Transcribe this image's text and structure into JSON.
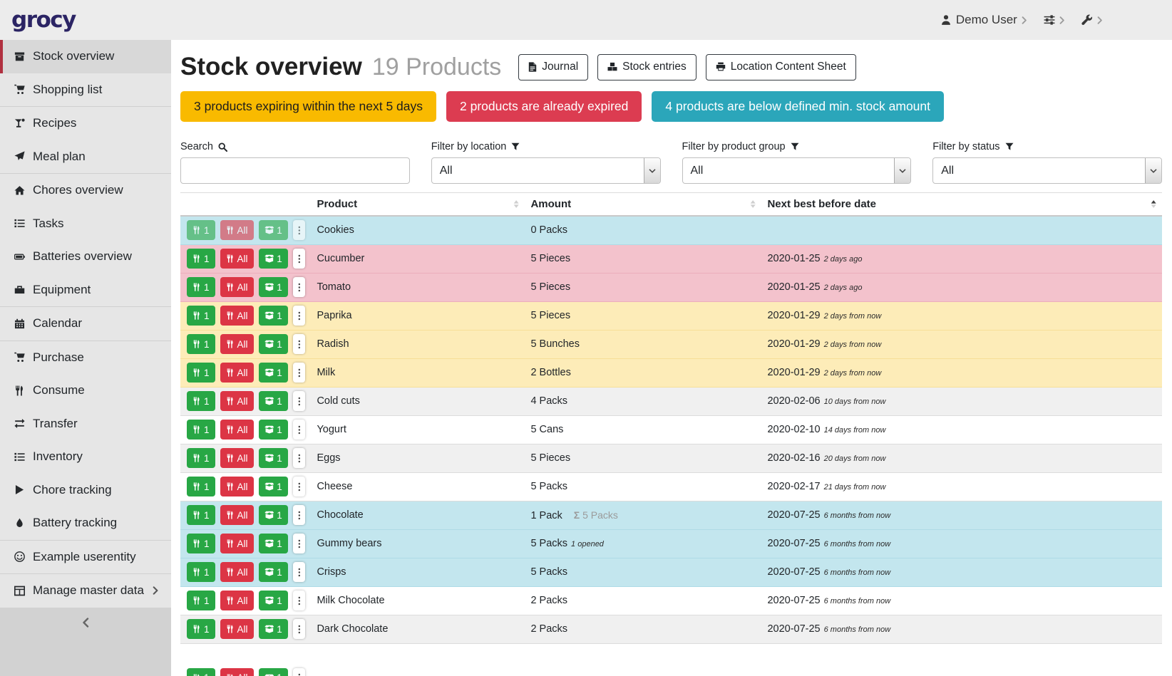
{
  "app": {
    "logo": "grocy"
  },
  "topbar": {
    "user_label": "Demo User",
    "user_icon": "user-icon",
    "settings_icon": "sliders-icon",
    "admin_icon": "wrench-icon",
    "chevron_icon": "angle-right-icon"
  },
  "sidebar": {
    "items": [
      {
        "label": "Stock overview",
        "icon": "box",
        "active": true
      },
      {
        "label": "Shopping list",
        "icon": "cart",
        "divider_after": true
      },
      {
        "label": "Recipes",
        "icon": "cocktail"
      },
      {
        "label": "Meal plan",
        "icon": "plane",
        "divider_after": true
      },
      {
        "label": "Chores overview",
        "icon": "home"
      },
      {
        "label": "Tasks",
        "icon": "tasks"
      },
      {
        "label": "Batteries overview",
        "icon": "battery"
      },
      {
        "label": "Equipment",
        "icon": "toolbox",
        "divider_after": true
      },
      {
        "label": "Calendar",
        "icon": "calendar",
        "divider_after": true
      },
      {
        "label": "Purchase",
        "icon": "cart"
      },
      {
        "label": "Consume",
        "icon": "utensils"
      },
      {
        "label": "Transfer",
        "icon": "exchange"
      },
      {
        "label": "Inventory",
        "icon": "tasks"
      },
      {
        "label": "Chore tracking",
        "icon": "play"
      },
      {
        "label": "Battery tracking",
        "icon": "tint",
        "divider_after": true
      },
      {
        "label": "Example userentity",
        "icon": "smile",
        "divider_after": true
      },
      {
        "label": "Manage master data",
        "icon": "table",
        "has_submenu": true
      }
    ],
    "collapse_icon": "angle-left-icon"
  },
  "header": {
    "title": "Stock overview",
    "subtitle": "19 Products",
    "buttons": [
      {
        "label": "Journal",
        "icon": "file"
      },
      {
        "label": "Stock entries",
        "icon": "cubes"
      },
      {
        "label": "Location Content Sheet",
        "icon": "print"
      }
    ]
  },
  "alerts": [
    {
      "text": "3 products expiring within the next 5 days",
      "color": "#f9ba00",
      "text_color": "#1d1d1d"
    },
    {
      "text": "2 products are already expired",
      "color": "#dc3c51",
      "text_color": "#ffffff"
    },
    {
      "text": "4 products are below defined min. stock amount",
      "color": "#2ba6ba",
      "text_color": "#ffffff"
    }
  ],
  "filters": {
    "search_label": "Search",
    "location_label": "Filter by location",
    "location_value": "All",
    "product_group_label": "Filter by product group",
    "product_group_value": "All",
    "status_label": "Filter by status",
    "status_value": "All"
  },
  "table": {
    "columns": [
      "Product",
      "Amount",
      "Next best before date"
    ],
    "row_buttons": {
      "consume_one": "1",
      "consume_all": "All",
      "open_one": "1"
    },
    "rows": [
      {
        "product": "Cookies",
        "amount": "0 Packs",
        "date": "",
        "date_rel": "",
        "status": "belowmin",
        "disabled": true
      },
      {
        "product": "Cucumber",
        "amount": "5 Pieces",
        "date": "2020-01-25",
        "date_rel": "2 days ago",
        "status": "expired"
      },
      {
        "product": "Tomato",
        "amount": "5 Pieces",
        "date": "2020-01-25",
        "date_rel": "2 days ago",
        "status": "expired"
      },
      {
        "product": "Paprika",
        "amount": "5 Pieces",
        "date": "2020-01-29",
        "date_rel": "2 days from now",
        "status": "expiring"
      },
      {
        "product": "Radish",
        "amount": "5 Bunches",
        "date": "2020-01-29",
        "date_rel": "2 days from now",
        "status": "expiring"
      },
      {
        "product": "Milk",
        "amount": "2 Bottles",
        "date": "2020-01-29",
        "date_rel": "2 days from now",
        "status": "expiring"
      },
      {
        "product": "Cold cuts",
        "amount": "4 Packs",
        "date": "2020-02-06",
        "date_rel": "10 days from now",
        "status": ""
      },
      {
        "product": "Yogurt",
        "amount": "5 Cans",
        "date": "2020-02-10",
        "date_rel": "14 days from now",
        "status": ""
      },
      {
        "product": "Eggs",
        "amount": "5 Pieces",
        "date": "2020-02-16",
        "date_rel": "20 days from now",
        "status": ""
      },
      {
        "product": "Cheese",
        "amount": "5 Packs",
        "date": "2020-02-17",
        "date_rel": "21 days from now",
        "status": ""
      },
      {
        "product": "Chocolate",
        "amount": "1 Pack",
        "amount_sum": "Σ 5 Packs",
        "date": "2020-07-25",
        "date_rel": "6 months from now",
        "status": "belowmin"
      },
      {
        "product": "Gummy bears",
        "amount": "5 Packs",
        "amount_opened": "1 opened",
        "date": "2020-07-25",
        "date_rel": "6 months from now",
        "status": "belowmin"
      },
      {
        "product": "Crisps",
        "amount": "5 Packs",
        "date": "2020-07-25",
        "date_rel": "6 months from now",
        "status": "belowmin"
      },
      {
        "product": "Milk Chocolate",
        "amount": "2 Packs",
        "date": "2020-07-25",
        "date_rel": "6 months from now",
        "status": ""
      },
      {
        "product": "Dark Chocolate",
        "amount": "2 Packs",
        "date": "2020-07-25",
        "date_rel": "6 months from now",
        "status": ""
      },
      {
        "product": "",
        "amount": "",
        "date": "",
        "date_rel": "",
        "status": "",
        "partial": true
      }
    ]
  }
}
